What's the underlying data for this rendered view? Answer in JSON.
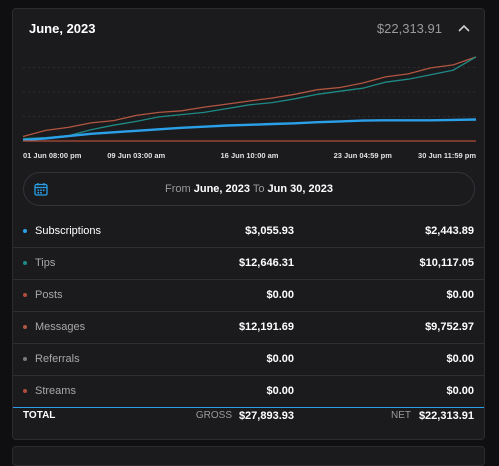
{
  "card": {
    "title": "June, 2023",
    "total": "$22,313.91",
    "collapse_icon": "chevron-up-icon"
  },
  "colors": {
    "subscriptions": "#2aa0e8",
    "tips": "#1f8a84",
    "posts": "#b04c3a",
    "messages": "#b05540",
    "referrals": "#7a7a7a",
    "streams": "#b04c3a",
    "accent": "#2aa0e8"
  },
  "chart_data": {
    "type": "line",
    "x_ticks": [
      "01 Jun 08:00 pm",
      "09 Jun 03:00 am",
      "16 Jun 10:00 am",
      "23 Jun 04:59 pm",
      "30 Jun 11:59 pm"
    ],
    "x": [
      0,
      1,
      2,
      3,
      4,
      5,
      6,
      7,
      8,
      9,
      10,
      11,
      12,
      13,
      14,
      15,
      16,
      17,
      18,
      19,
      20
    ],
    "ylim": [
      0,
      26000
    ],
    "grid": true,
    "series": [
      {
        "name": "Messages",
        "color": "#b05540",
        "values": [
          1200,
          2800,
          3600,
          4800,
          5400,
          6800,
          7600,
          8000,
          9000,
          9800,
          10600,
          11400,
          12400,
          13600,
          14200,
          15400,
          17000,
          17800,
          19400,
          20200,
          22313
        ]
      },
      {
        "name": "Tips",
        "color": "#1f8a84",
        "values": [
          600,
          900,
          1400,
          3000,
          4200,
          5200,
          6400,
          7000,
          7600,
          8600,
          9600,
          10200,
          11200,
          12400,
          13200,
          14000,
          15600,
          16400,
          17600,
          18800,
          22313
        ]
      },
      {
        "name": "Subscriptions",
        "color": "#2aa0e8",
        "values": [
          200,
          700,
          1300,
          1900,
          2300,
          2700,
          3100,
          3500,
          3800,
          4100,
          4300,
          4500,
          4700,
          5000,
          5200,
          5400,
          5500,
          5500,
          5500,
          5600,
          5700
        ]
      },
      {
        "name": "Posts",
        "color": "#b04c3a",
        "values": [
          0,
          0,
          0,
          0,
          0,
          0,
          0,
          0,
          0,
          0,
          0,
          0,
          0,
          0,
          0,
          0,
          0,
          0,
          0,
          0,
          0
        ]
      }
    ]
  },
  "date_range": {
    "from_label": "From",
    "from": "June, 2023",
    "to_label": "To",
    "to": "Jun 30, 2023",
    "calendar_icon": "calendar-icon"
  },
  "rows": [
    {
      "label": "Subscriptions",
      "gross": "$3,055.93",
      "net": "$2,443.89",
      "color": "#2aa0e8",
      "active": true
    },
    {
      "label": "Tips",
      "gross": "$12,646.31",
      "net": "$10,117.05",
      "color": "#1f8a84",
      "active": false
    },
    {
      "label": "Posts",
      "gross": "$0.00",
      "net": "$0.00",
      "color": "#b04c3a",
      "active": false
    },
    {
      "label": "Messages",
      "gross": "$12,191.69",
      "net": "$9,752.97",
      "color": "#b05540",
      "active": false
    },
    {
      "label": "Referrals",
      "gross": "$0.00",
      "net": "$0.00",
      "color": "#7a7a7a",
      "active": false
    },
    {
      "label": "Streams",
      "gross": "$0.00",
      "net": "$0.00",
      "color": "#b04c3a",
      "active": false
    }
  ],
  "totals": {
    "label": "TOTAL",
    "gross_caption": "GROSS",
    "gross": "$27,893.93",
    "net_caption": "NET",
    "net": "$22,313.91"
  }
}
